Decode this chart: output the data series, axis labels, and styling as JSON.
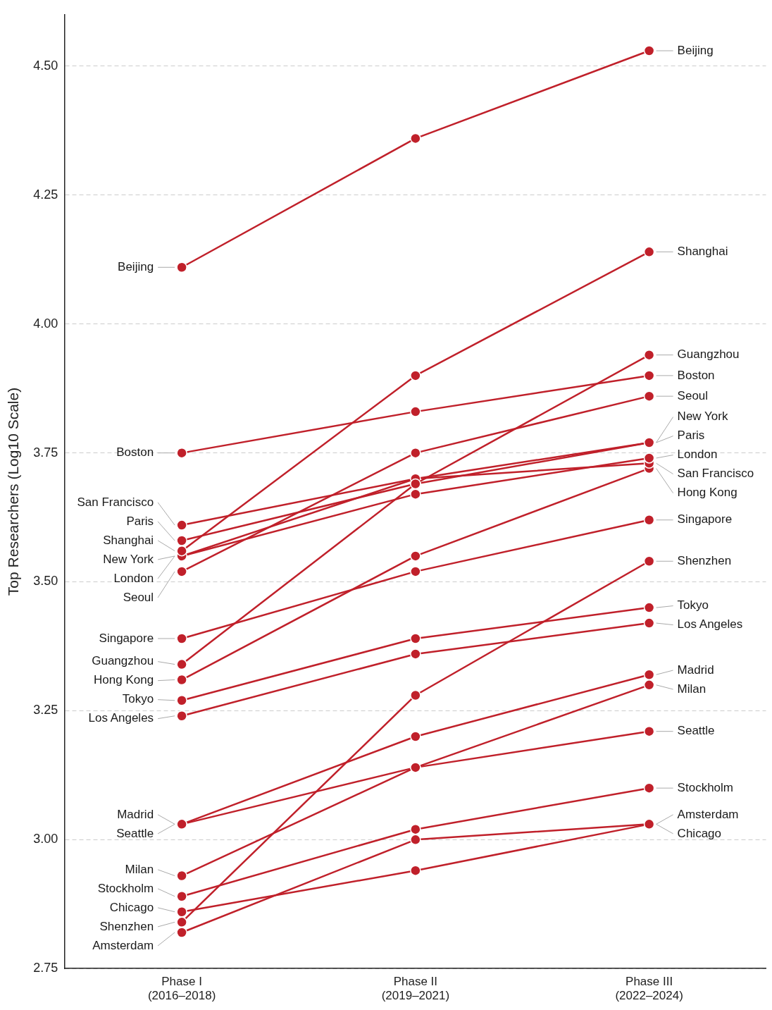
{
  "chart_data": {
    "type": "line",
    "categories": [
      "Phase I\n(2016–2018)",
      "Phase II\n(2019–2021)",
      "Phase III\n(2022–2024)"
    ],
    "ylabel": "Top Researchers (Log10 Scale)",
    "ylim": [
      2.75,
      4.6
    ],
    "yticks": [
      {
        "value": 2.75,
        "label": "2.75"
      },
      {
        "value": 3,
        "label": "3.00"
      },
      {
        "value": 3.25,
        "label": "3.25"
      },
      {
        "value": 3.5,
        "label": "3.50"
      },
      {
        "value": 3.75,
        "label": "3.75"
      },
      {
        "value": 4,
        "label": "4.00"
      },
      {
        "value": 4.25,
        "label": "4.25"
      },
      {
        "value": 4.5,
        "label": "4.50"
      }
    ],
    "grid": "y",
    "legend": false,
    "marker": "circle",
    "line_style": "solid",
    "series": [
      {
        "name": "Beijing",
        "color": "#c0202a",
        "values": [
          4.11,
          4.36,
          4.53
        ]
      },
      {
        "name": "Shanghai",
        "color": "#c0202a",
        "values": [
          3.56,
          3.9,
          4.14
        ]
      },
      {
        "name": "Guangzhou",
        "color": "#c0202a",
        "values": [
          3.34,
          3.69,
          3.94
        ]
      },
      {
        "name": "Boston",
        "color": "#c0202a",
        "values": [
          3.75,
          3.83,
          3.9
        ]
      },
      {
        "name": "Seoul",
        "color": "#c0202a",
        "values": [
          3.52,
          3.75,
          3.86
        ]
      },
      {
        "name": "New York",
        "color": "#c0202a",
        "values": [
          3.55,
          3.7,
          3.77
        ]
      },
      {
        "name": "Paris",
        "color": "#c0202a",
        "values": [
          3.58,
          3.69,
          3.77
        ]
      },
      {
        "name": "London",
        "color": "#c0202a",
        "values": [
          3.55,
          3.67,
          3.74
        ]
      },
      {
        "name": "San Francisco",
        "color": "#c0202a",
        "values": [
          3.61,
          3.7,
          3.73
        ]
      },
      {
        "name": "Hong Kong",
        "color": "#c0202a",
        "values": [
          3.31,
          3.55,
          3.72
        ]
      },
      {
        "name": "Singapore",
        "color": "#c0202a",
        "values": [
          3.39,
          3.52,
          3.62
        ]
      },
      {
        "name": "Shenzhen",
        "color": "#c0202a",
        "values": [
          2.84,
          3.28,
          3.54
        ]
      },
      {
        "name": "Tokyo",
        "color": "#c0202a",
        "values": [
          3.27,
          3.39,
          3.45
        ]
      },
      {
        "name": "Los Angeles",
        "color": "#c0202a",
        "values": [
          3.24,
          3.36,
          3.42
        ]
      },
      {
        "name": "Madrid",
        "color": "#c0202a",
        "values": [
          3.03,
          3.2,
          3.32
        ]
      },
      {
        "name": "Milan",
        "color": "#c0202a",
        "values": [
          2.93,
          3.14,
          3.3
        ]
      },
      {
        "name": "Seattle",
        "color": "#c0202a",
        "values": [
          3.03,
          3.14,
          3.21
        ]
      },
      {
        "name": "Stockholm",
        "color": "#c0202a",
        "values": [
          2.89,
          3.02,
          3.1
        ]
      },
      {
        "name": "Amsterdam",
        "color": "#c0202a",
        "values": [
          2.82,
          3.0,
          3.03
        ]
      },
      {
        "name": "Chicago",
        "color": "#c0202a",
        "values": [
          2.86,
          2.94,
          3.03
        ]
      }
    ]
  }
}
